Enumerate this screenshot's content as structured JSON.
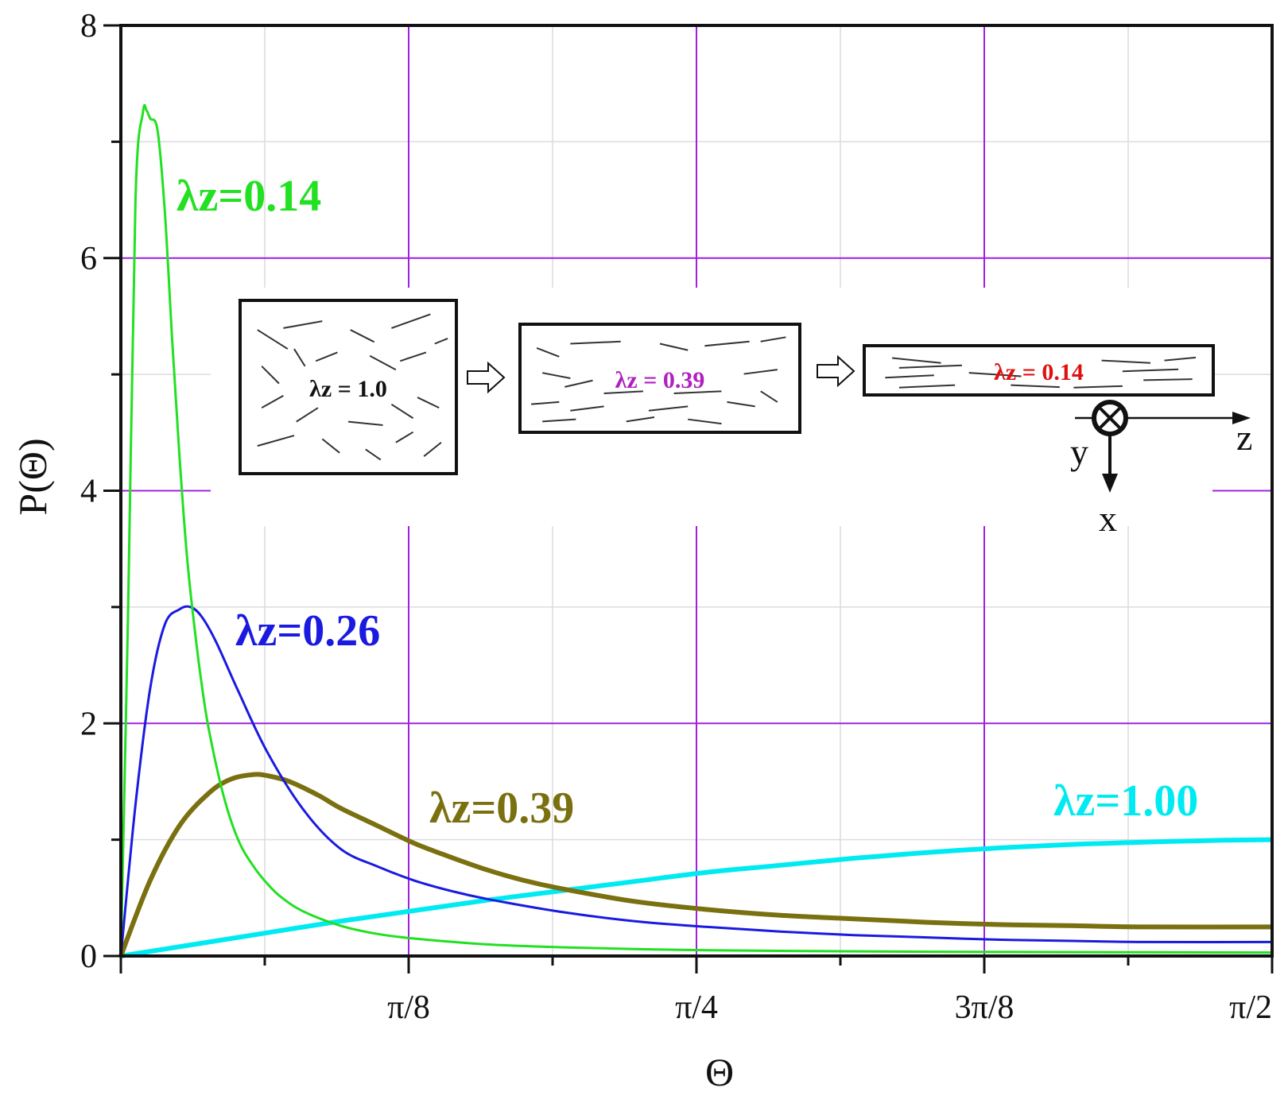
{
  "chart_data": {
    "type": "line",
    "xlabel": "Θ",
    "ylabel": "P(Θ)",
    "xlim": [
      0,
      1.5708
    ],
    "ylim": [
      0,
      8
    ],
    "grid": true,
    "x_ticks": [
      {
        "value": 0,
        "label": ""
      },
      {
        "value": 0.3927,
        "label": "π/8"
      },
      {
        "value": 0.7854,
        "label": "π/4"
      },
      {
        "value": 1.1781,
        "label": "3π/8"
      },
      {
        "value": 1.5708,
        "label": "π/2"
      }
    ],
    "y_ticks": [
      {
        "value": 0,
        "label": "0"
      },
      {
        "value": 2,
        "label": "2"
      },
      {
        "value": 4,
        "label": "4"
      },
      {
        "value": 6,
        "label": "6"
      },
      {
        "value": 8,
        "label": "8"
      }
    ],
    "series": [
      {
        "name": "λz=0.14",
        "color": "#22e022",
        "x": [
          0,
          0.01,
          0.02,
          0.03,
          0.035,
          0.04,
          0.05,
          0.06,
          0.07,
          0.08,
          0.09,
          0.1,
          0.11,
          0.12,
          0.14,
          0.16,
          0.18,
          0.2,
          0.22,
          0.25,
          0.3,
          0.35,
          0.4,
          0.5,
          0.6,
          0.7,
          0.8,
          1.0,
          1.2,
          1.4,
          1.5708
        ],
        "y": [
          0,
          3.0,
          6.5,
          7.25,
          7.27,
          7.2,
          7.1,
          6.4,
          5.3,
          4.3,
          3.45,
          2.85,
          2.35,
          1.95,
          1.38,
          1.0,
          0.78,
          0.62,
          0.5,
          0.38,
          0.26,
          0.19,
          0.15,
          0.1,
          0.075,
          0.06,
          0.05,
          0.04,
          0.035,
          0.032,
          0.03
        ]
      },
      {
        "name": "λz=0.26",
        "color": "#1a1ae0",
        "x": [
          0,
          0.02,
          0.04,
          0.06,
          0.08,
          0.095,
          0.11,
          0.13,
          0.16,
          0.2,
          0.25,
          0.3,
          0.35,
          0.4,
          0.45,
          0.5,
          0.6,
          0.7,
          0.8,
          0.9,
          1.0,
          1.1,
          1.2,
          1.3,
          1.4,
          1.5708
        ],
        "y": [
          0,
          1.3,
          2.3,
          2.85,
          2.98,
          3.0,
          2.92,
          2.7,
          2.28,
          1.75,
          1.25,
          0.92,
          0.77,
          0.65,
          0.56,
          0.49,
          0.38,
          0.3,
          0.25,
          0.21,
          0.18,
          0.16,
          0.14,
          0.13,
          0.12,
          0.12
        ]
      },
      {
        "name": "λz=0.39",
        "color": "#7a7010",
        "x": [
          0,
          0.04,
          0.08,
          0.12,
          0.15,
          0.18,
          0.2,
          0.23,
          0.27,
          0.3,
          0.35,
          0.4,
          0.45,
          0.5,
          0.55,
          0.6,
          0.7,
          0.8,
          0.9,
          1.0,
          1.1,
          1.2,
          1.3,
          1.4,
          1.5708
        ],
        "y": [
          0,
          0.65,
          1.12,
          1.4,
          1.52,
          1.56,
          1.55,
          1.5,
          1.38,
          1.27,
          1.12,
          0.97,
          0.85,
          0.74,
          0.65,
          0.58,
          0.47,
          0.4,
          0.35,
          0.32,
          0.29,
          0.27,
          0.26,
          0.25,
          0.25
        ]
      },
      {
        "name": "λz=1.00",
        "color": "#00eaf2",
        "x": [
          0,
          0.1,
          0.2,
          0.3,
          0.4,
          0.5,
          0.6,
          0.7,
          0.8,
          0.9,
          1.0,
          1.1,
          1.2,
          1.3,
          1.4,
          1.5,
          1.5708
        ],
        "y": [
          0,
          0.1,
          0.2,
          0.3,
          0.39,
          0.48,
          0.56,
          0.64,
          0.72,
          0.78,
          0.84,
          0.89,
          0.93,
          0.96,
          0.98,
          0.995,
          1.0
        ]
      }
    ],
    "curve_labels": [
      "λz=0.14",
      "λz=0.26",
      "λz=0.39",
      "λz=1.00"
    ],
    "inset": {
      "box_labels": [
        "λz = 1.0",
        "λz = 0.39",
        "λz = 0.14"
      ],
      "box_label_colors": [
        "#111111",
        "#b020c0",
        "#e01010"
      ],
      "axis_labels": {
        "z": "z",
        "y": "y",
        "x": "x"
      }
    }
  }
}
